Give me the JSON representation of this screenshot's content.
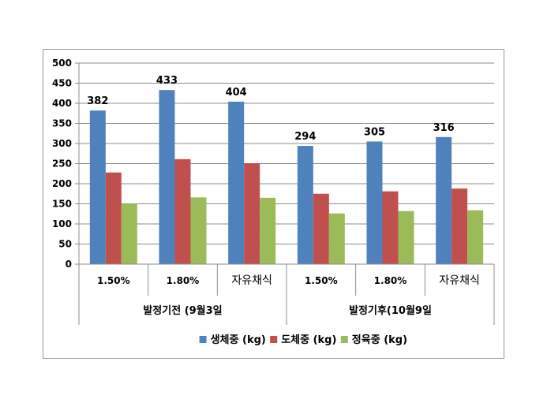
{
  "chart_data": {
    "type": "bar",
    "groups": [
      {
        "label": "발정기전 (9월3일",
        "categories": [
          "1.50%",
          "1.80%",
          "자유채식"
        ]
      },
      {
        "label": "발정기후(10월9일",
        "categories": [
          "1.50%",
          "1.80%",
          "자유채식"
        ]
      }
    ],
    "series": [
      {
        "name": "생체중 (kg)",
        "color": "#4f81bd",
        "values": [
          382,
          433,
          404,
          294,
          305,
          316
        ]
      },
      {
        "name": "도체중 (kg)",
        "color": "#c0504d",
        "values": [
          228,
          261,
          251,
          175,
          181,
          188
        ]
      },
      {
        "name": "정육중 (kg)",
        "color": "#9bbb59",
        "values": [
          150,
          166,
          165,
          126,
          132,
          134
        ]
      }
    ],
    "data_labels": [
      "382",
      "433",
      "404",
      "294",
      "305",
      "316"
    ],
    "y_ticks": [
      0,
      50,
      100,
      150,
      200,
      250,
      300,
      350,
      400,
      450,
      500
    ],
    "ylim": [
      0,
      500
    ],
    "grid": true,
    "legend": "bottom"
  }
}
